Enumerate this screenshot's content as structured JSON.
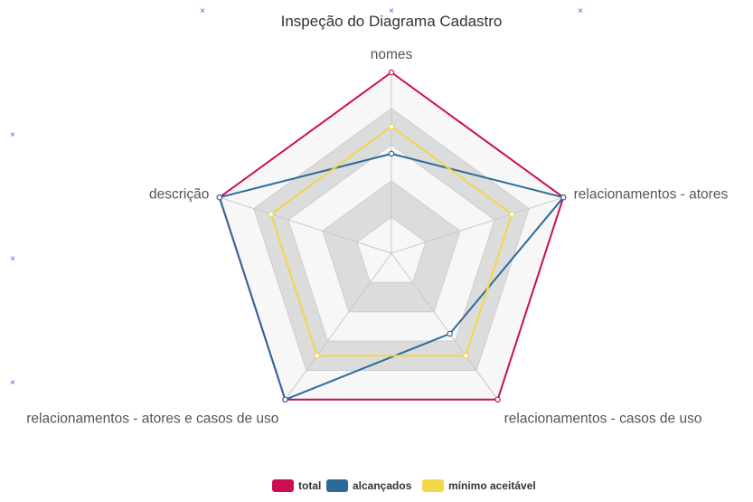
{
  "chart_data": {
    "type": "radar",
    "title": "Inspeção do Diagrama Cadastro",
    "axes": [
      "nomes",
      "relacionamentos - atores",
      "relacionamentos - casos de uso",
      "relacionamentos - atores e casos de uso",
      "descrição"
    ],
    "max": 1,
    "bands": 5,
    "series": [
      {
        "name": "total",
        "color": "#cc0d55",
        "values": [
          1,
          1,
          1,
          1,
          1
        ]
      },
      {
        "name": "alcançados",
        "color": "#2c6a9a",
        "values": [
          0.55,
          1,
          0.55,
          1,
          1
        ]
      },
      {
        "name": "mínimo aceitável",
        "color": "#f2d64b",
        "values": [
          0.7,
          0.7,
          0.7,
          0.7,
          0.7
        ]
      }
    ],
    "legend_position": "bottom"
  }
}
